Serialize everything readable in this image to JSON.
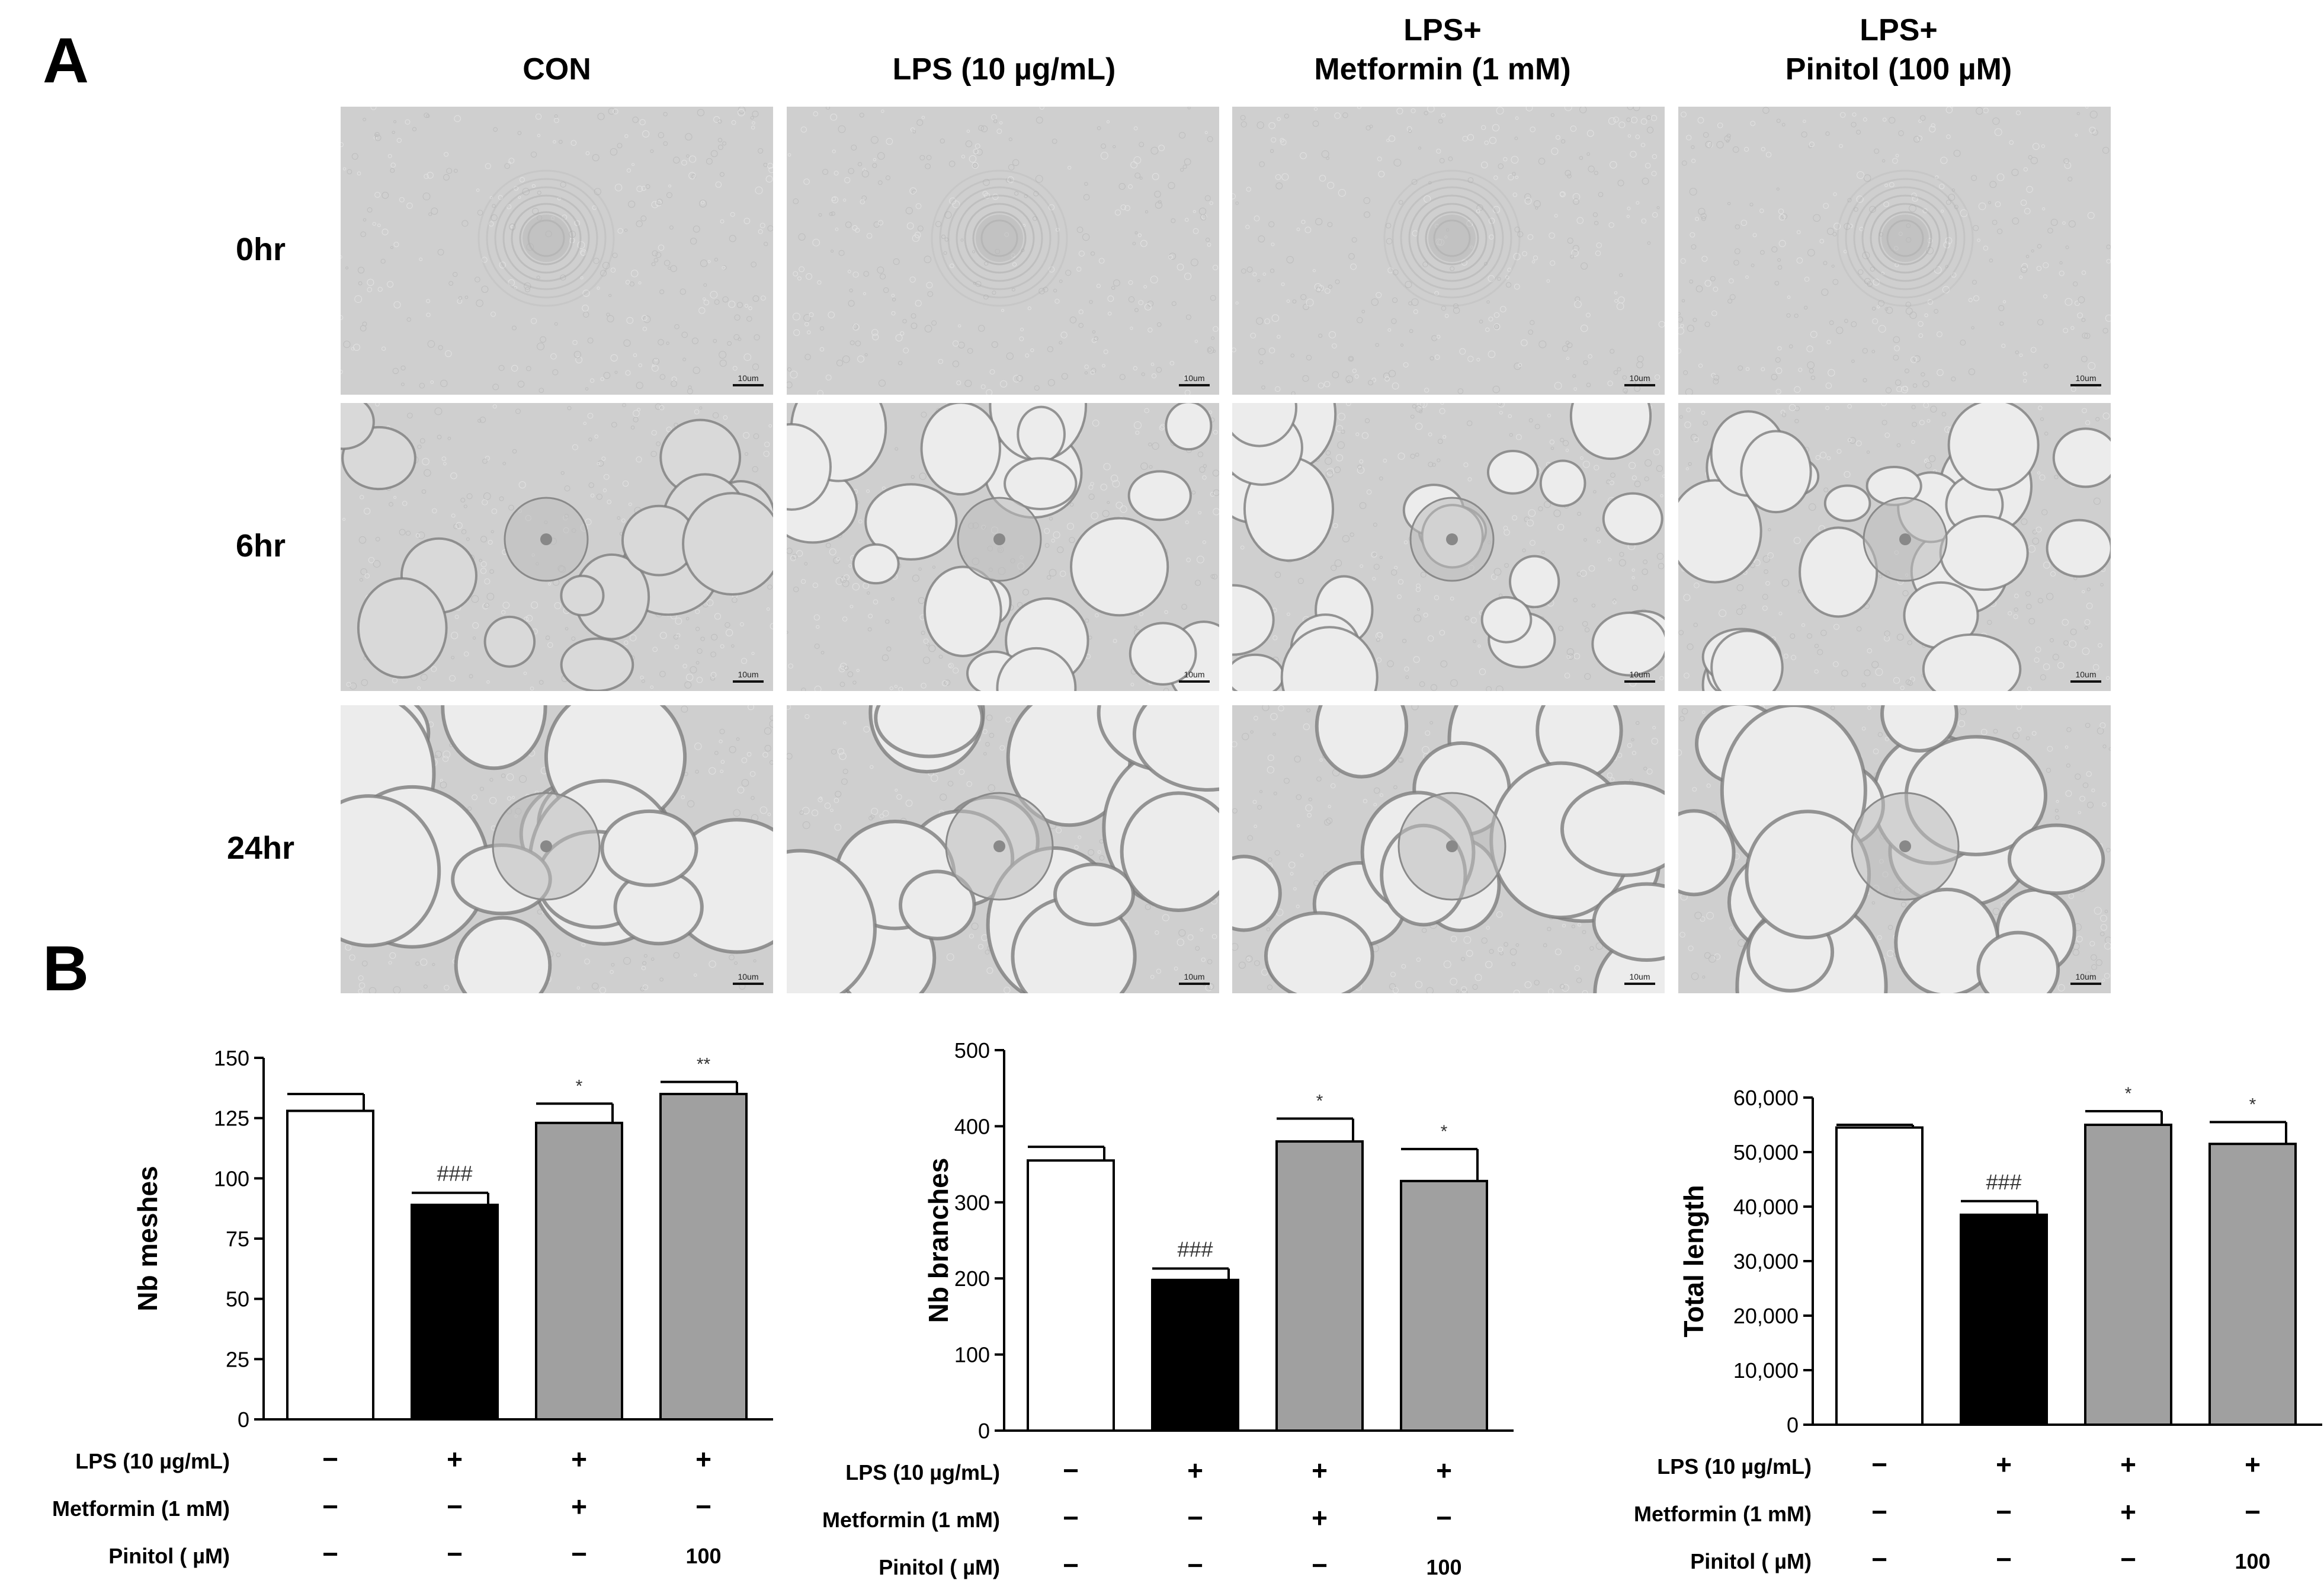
{
  "figure": {
    "panel_a_label": "A",
    "panel_b_label": "B",
    "column_headers": [
      {
        "line1": "",
        "line2": "CON"
      },
      {
        "line1": "",
        "line2": "LPS (10 µg/mL)"
      },
      {
        "line1": "LPS+",
        "line2": "Metformin (1 mM)"
      },
      {
        "line1": "LPS+",
        "line2": "Pinitol (100 µM)"
      }
    ],
    "row_labels": [
      "0hr",
      "6hr",
      "24hr"
    ],
    "scale_label": "10um"
  },
  "treatment_rows": [
    {
      "label": "LPS (10 µg/mL)",
      "values": [
        "−",
        "+",
        "+",
        "+"
      ]
    },
    {
      "label": "Metformin (1 mM)",
      "values": [
        "−",
        "−",
        "+",
        "−"
      ]
    },
    {
      "label": "Pinitol ( µM)",
      "values": [
        "−",
        "−",
        "−",
        "100"
      ]
    }
  ],
  "colors": {
    "con": "#ffffff",
    "lps": "#000000",
    "treated": "#a0a0a0",
    "micro_bg": "#d2d2d2"
  },
  "chart_data": [
    {
      "type": "bar",
      "categories": [
        "CON",
        "LPS (10 µg/mL)",
        "LPS+Metformin (1 mM)",
        "LPS+Pinitol (100 µM)"
      ],
      "values": [
        128,
        89,
        123,
        135
      ],
      "errors": [
        7,
        5,
        8,
        5
      ],
      "annotations": [
        "",
        "###",
        "*",
        "**"
      ],
      "ylabel": "Nb meshes",
      "ylim": [
        0,
        150
      ],
      "yticks": [
        "0",
        "25",
        "50",
        "75",
        "100",
        "125",
        "150"
      ]
    },
    {
      "type": "bar",
      "categories": [
        "CON",
        "LPS (10 µg/mL)",
        "LPS+Metformin (1 mM)",
        "LPS+Pinitol (100 µM)"
      ],
      "values": [
        355,
        198,
        380,
        328
      ],
      "errors": [
        18,
        15,
        30,
        42
      ],
      "annotations": [
        "",
        "###",
        "*",
        "*"
      ],
      "ylabel": "Nb branches",
      "ylim": [
        0,
        500
      ],
      "yticks": [
        "0",
        "100",
        "200",
        "300",
        "400",
        "500"
      ]
    },
    {
      "type": "bar",
      "categories": [
        "CON",
        "LPS (10 µg/mL)",
        "LPS+Metformin (1 mM)",
        "LPS+Pinitol (100 µM)"
      ],
      "values": [
        54500,
        38500,
        55000,
        51500
      ],
      "errors": [
        500,
        2500,
        2500,
        4000
      ],
      "annotations": [
        "",
        "###",
        "*",
        "*"
      ],
      "ylabel": "Total length",
      "ylim": [
        0,
        60000
      ],
      "yticks": [
        "0",
        "10,000",
        "20,000",
        "30,000",
        "40,000",
        "50,000",
        "60,000"
      ]
    }
  ]
}
